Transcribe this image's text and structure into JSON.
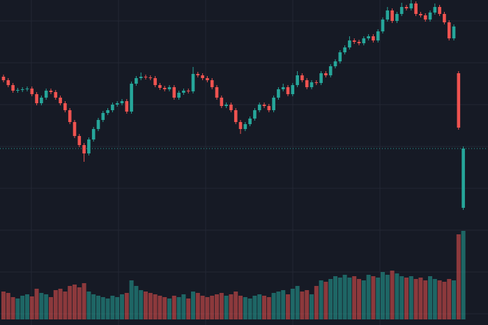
{
  "chart_data": {
    "type": "candlestick",
    "open": [
      356,
      351,
      344,
      336,
      337,
      338,
      339,
      331,
      318,
      326,
      336,
      334,
      326,
      318,
      308,
      291,
      271,
      258,
      246,
      266,
      281,
      294,
      304,
      308,
      316,
      318,
      321,
      306,
      346,
      354,
      356,
      355,
      354,
      344,
      340,
      338,
      341,
      326,
      333,
      336,
      335,
      360,
      358,
      354,
      351,
      341,
      326,
      314,
      316,
      308,
      291,
      281,
      288,
      296,
      308,
      316,
      314,
      308,
      326,
      338,
      341,
      331,
      344,
      358,
      351,
      341,
      348,
      347,
      361,
      358,
      371,
      378,
      391,
      398,
      408,
      406,
      404,
      411,
      414,
      408,
      421,
      438,
      451,
      436,
      446,
      456,
      454,
      461,
      446,
      444,
      438,
      448,
      456,
      446,
      434,
      411,
      361,
      168
    ],
    "high": [
      359,
      354,
      347,
      340,
      341,
      342,
      342,
      334,
      329,
      339,
      339,
      337,
      329,
      321,
      311,
      294,
      274,
      261,
      269,
      284,
      297,
      307,
      311,
      319,
      321,
      324,
      324,
      349,
      357,
      362,
      359,
      358,
      357,
      347,
      343,
      344,
      344,
      336,
      339,
      339,
      370,
      363,
      361,
      357,
      354,
      344,
      329,
      319,
      319,
      311,
      294,
      291,
      299,
      311,
      319,
      319,
      317,
      329,
      341,
      346,
      344,
      347,
      364,
      361,
      354,
      351,
      351,
      364,
      364,
      374,
      381,
      394,
      401,
      414,
      411,
      409,
      414,
      417,
      417,
      424,
      441,
      456,
      454,
      449,
      462,
      459,
      466,
      464,
      449,
      447,
      451,
      461,
      459,
      449,
      437,
      431,
      364,
      256
    ],
    "low": [
      348,
      341,
      333,
      333,
      334,
      335,
      328,
      315,
      315,
      323,
      331,
      323,
      315,
      305,
      288,
      268,
      255,
      234,
      243,
      263,
      278,
      291,
      301,
      305,
      313,
      315,
      303,
      303,
      343,
      351,
      352,
      351,
      341,
      337,
      335,
      335,
      323,
      323,
      330,
      332,
      332,
      355,
      351,
      348,
      338,
      323,
      311,
      311,
      305,
      288,
      274,
      278,
      285,
      293,
      305,
      311,
      305,
      305,
      323,
      335,
      328,
      328,
      341,
      348,
      338,
      338,
      344,
      344,
      355,
      355,
      368,
      375,
      388,
      395,
      403,
      401,
      401,
      408,
      405,
      405,
      418,
      435,
      433,
      433,
      443,
      451,
      451,
      443,
      441,
      435,
      435,
      445,
      443,
      431,
      408,
      408,
      280,
      165
    ],
    "close": [
      351,
      344,
      336,
      337,
      338,
      339,
      331,
      318,
      326,
      336,
      334,
      326,
      318,
      308,
      291,
      271,
      258,
      246,
      266,
      281,
      294,
      304,
      308,
      316,
      318,
      321,
      306,
      346,
      354,
      356,
      355,
      354,
      344,
      340,
      338,
      341,
      326,
      333,
      336,
      335,
      360,
      358,
      354,
      351,
      341,
      326,
      314,
      316,
      308,
      291,
      281,
      288,
      296,
      308,
      316,
      314,
      308,
      326,
      338,
      341,
      331,
      344,
      358,
      351,
      341,
      348,
      347,
      361,
      358,
      371,
      378,
      391,
      398,
      408,
      406,
      404,
      411,
      414,
      408,
      421,
      438,
      451,
      436,
      446,
      456,
      454,
      461,
      446,
      444,
      438,
      448,
      456,
      446,
      434,
      411,
      428,
      283,
      253
    ],
    "volume": [
      40,
      38,
      32,
      30,
      34,
      36,
      33,
      44,
      38,
      36,
      32,
      42,
      44,
      40,
      48,
      50,
      46,
      52,
      40,
      36,
      34,
      32,
      30,
      34,
      32,
      36,
      38,
      56,
      48,
      42,
      40,
      38,
      36,
      34,
      32,
      30,
      34,
      32,
      36,
      30,
      40,
      38,
      34,
      32,
      34,
      36,
      38,
      34,
      36,
      40,
      34,
      32,
      30,
      34,
      36,
      34,
      32,
      38,
      40,
      42,
      36,
      44,
      48,
      40,
      42,
      36,
      48,
      56,
      54,
      58,
      62,
      60,
      64,
      60,
      62,
      58,
      56,
      64,
      62,
      60,
      68,
      64,
      70,
      66,
      62,
      60,
      62,
      58,
      60,
      56,
      62,
      58,
      56,
      54,
      58,
      56,
      122,
      127
    ],
    "up_color": "#26a69a",
    "down_color": "#ef5350",
    "ylim": [
      0,
      466
    ],
    "yticks": [
      16,
      76,
      136,
      196,
      256,
      316,
      376,
      436
    ],
    "y2lim": [
      0,
      466
    ],
    "grid": true
  }
}
